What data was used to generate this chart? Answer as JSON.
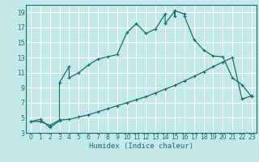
{
  "title": "",
  "xlabel": "Humidex (Indice chaleur)",
  "background_color": "#c2e8e8",
  "grid_color": "#ffffff",
  "line_color": "#1a6e6a",
  "xlim": [
    -0.5,
    23.5
  ],
  "ylim": [
    3,
    20
  ],
  "xticks": [
    0,
    1,
    2,
    3,
    4,
    5,
    6,
    7,
    8,
    9,
    10,
    11,
    12,
    13,
    14,
    15,
    16,
    17,
    18,
    19,
    20,
    21,
    22,
    23
  ],
  "yticks": [
    3,
    5,
    7,
    9,
    11,
    13,
    15,
    17,
    19
  ],
  "curve1_x": [
    0,
    1,
    2,
    3,
    3,
    4,
    4,
    5,
    6,
    7,
    8,
    9,
    10,
    11,
    12,
    13,
    14,
    14,
    15,
    15,
    15,
    16,
    16,
    17,
    18,
    19,
    20,
    21,
    22,
    23
  ],
  "curve1_y": [
    4.5,
    4.8,
    3.7,
    4.6,
    9.7,
    11.8,
    10.3,
    11.0,
    12.0,
    12.8,
    13.1,
    13.4,
    16.3,
    17.5,
    16.2,
    16.8,
    18.8,
    17.5,
    19.2,
    18.5,
    19.2,
    18.8,
    18.5,
    15.4,
    14.0,
    13.2,
    13.1,
    10.3,
    9.4,
    7.8
  ],
  "curve2_x": [
    0,
    1,
    2,
    3,
    4,
    5,
    6,
    7,
    8,
    9,
    10,
    11,
    12,
    13,
    14,
    15,
    16,
    17,
    18,
    19,
    20,
    21,
    22,
    23
  ],
  "curve2_y": [
    4.5,
    4.5,
    4.0,
    4.7,
    4.8,
    5.1,
    5.4,
    5.8,
    6.2,
    6.6,
    7.0,
    7.4,
    7.8,
    8.3,
    8.8,
    9.3,
    9.9,
    10.5,
    11.1,
    11.8,
    12.4,
    13.0,
    7.5,
    7.9
  ]
}
